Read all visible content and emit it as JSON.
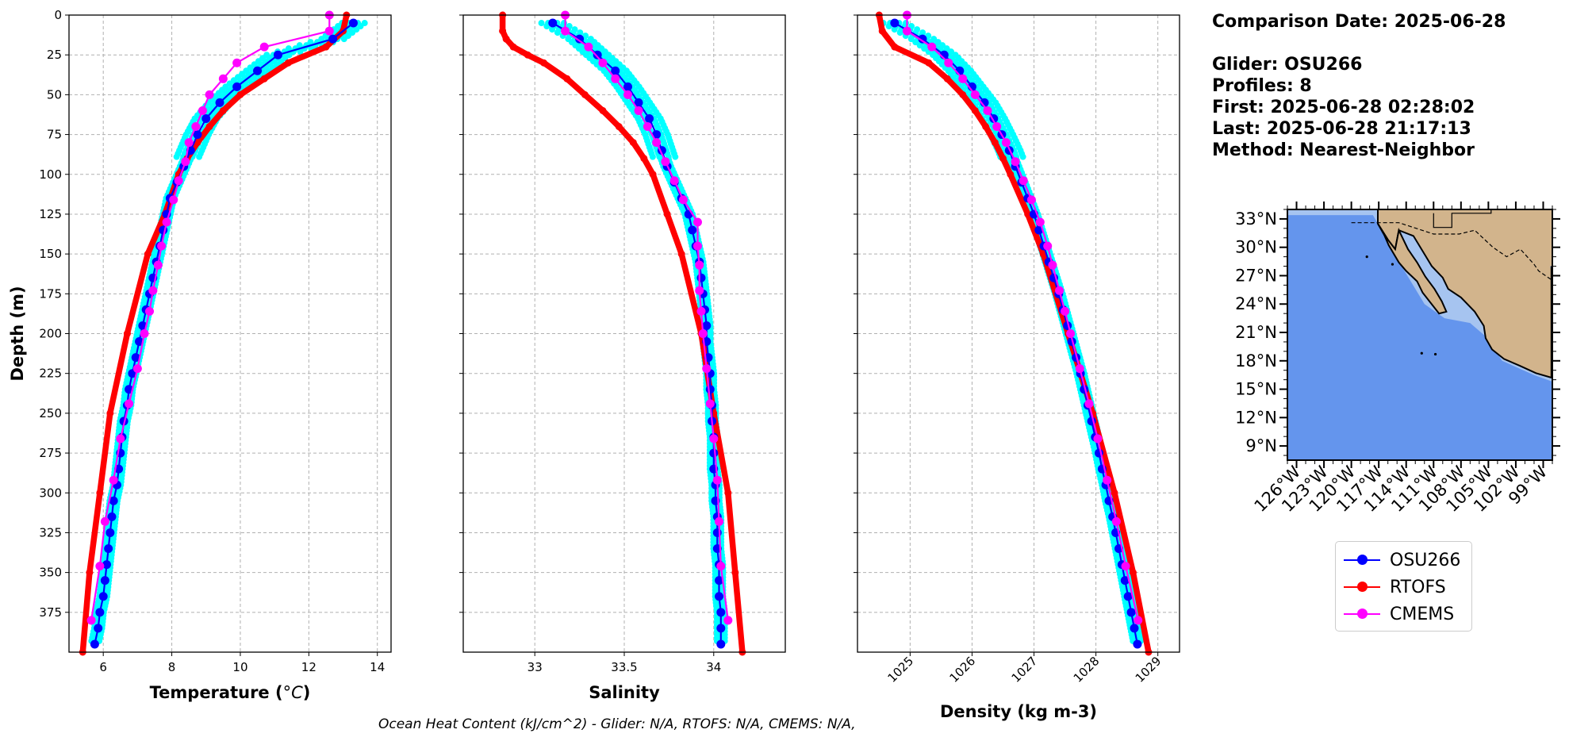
{
  "info": {
    "comparison_date": "Comparison Date: 2025-06-28",
    "glider": "Glider: OSU266",
    "profiles": "Profiles: 8",
    "first": "First: 2025-06-28 02:28:02",
    "last": "Last: 2025-06-28 21:17:13",
    "method": "Method: Nearest-Neighbor"
  },
  "footnote": "Ocean Heat Content (kJ/cm^2) - Glider: N/A,  RTOFS: N/A,  CMEMS: N/A,",
  "legend": [
    {
      "label": "OSU266",
      "color": "#0000ff"
    },
    {
      "label": "RTOFS",
      "color": "#ff0000"
    },
    {
      "label": "CMEMS",
      "color": "#ff00ff"
    }
  ],
  "colors": {
    "glider_raw": "#00ffff",
    "glider": "#0000ff",
    "rtofs": "#ff0000",
    "cmems": "#ff00ff",
    "ocean": "#6495ed",
    "shelf": "#a6c4f0",
    "land": "#d2b48c"
  },
  "map": {
    "lat_ticks": [
      "33°N",
      "30°N",
      "27°N",
      "24°N",
      "21°N",
      "18°N",
      "15°N",
      "12°N",
      "9°N"
    ],
    "lon_ticks": [
      "126°W",
      "123°W",
      "120°W",
      "117°W",
      "114°W",
      "111°W",
      "108°W",
      "105°W",
      "102°W",
      "99°W"
    ],
    "extent": {
      "lon": [
        -127,
        -98
      ],
      "lat": [
        7.5,
        34
      ]
    }
  },
  "chart_data": [
    {
      "type": "line",
      "xlabel": "Temperature (°C)",
      "ylabel": "Depth (m)",
      "xlim": [
        5,
        14.4
      ],
      "ylim": [
        400,
        0
      ],
      "xticks": [
        6,
        8,
        10,
        12,
        14
      ],
      "yticks": [
        0,
        25,
        50,
        75,
        100,
        125,
        150,
        175,
        200,
        225,
        250,
        275,
        300,
        325,
        350,
        375
      ],
      "grid": true,
      "series": [
        {
          "name": "OSU266",
          "depth": [
            5,
            15,
            25,
            35,
            45,
            55,
            65,
            75,
            85,
            95,
            105,
            115,
            125,
            135,
            145,
            155,
            165,
            175,
            185,
            195,
            205,
            215,
            225,
            235,
            245,
            255,
            265,
            275,
            285,
            295,
            305,
            315,
            325,
            335,
            345,
            355,
            365,
            375,
            385,
            395
          ],
          "values": [
            13.3,
            12.7,
            11.1,
            10.5,
            9.9,
            9.4,
            9.0,
            8.75,
            8.55,
            8.35,
            8.15,
            7.95,
            7.85,
            7.75,
            7.65,
            7.55,
            7.45,
            7.35,
            7.25,
            7.15,
            7.05,
            6.95,
            6.85,
            6.75,
            6.7,
            6.6,
            6.55,
            6.5,
            6.45,
            6.4,
            6.3,
            6.25,
            6.2,
            6.15,
            6.1,
            6.05,
            6.0,
            5.9,
            5.85,
            5.75
          ]
        },
        {
          "name": "RTOFS",
          "depth": [
            0,
            10,
            20,
            30,
            40,
            50,
            60,
            70,
            80,
            90,
            100,
            125,
            150,
            200,
            250,
            300,
            350,
            400
          ],
          "values": [
            13.1,
            13.0,
            12.5,
            11.4,
            10.7,
            10.0,
            9.5,
            9.1,
            8.75,
            8.45,
            8.2,
            7.8,
            7.3,
            6.7,
            6.2,
            5.9,
            5.6,
            5.4
          ]
        },
        {
          "name": "CMEMS",
          "depth": [
            0,
            10,
            20,
            30,
            40,
            50,
            60,
            70,
            80,
            92,
            104,
            116,
            130,
            145,
            157,
            173,
            186,
            200,
            222,
            244,
            266,
            292,
            318,
            346,
            380
          ],
          "values": [
            12.6,
            12.6,
            10.7,
            9.9,
            9.5,
            9.1,
            8.9,
            8.7,
            8.5,
            8.4,
            8.2,
            8.05,
            7.85,
            7.7,
            7.6,
            7.45,
            7.35,
            7.2,
            7.0,
            6.75,
            6.5,
            6.3,
            6.05,
            5.9,
            5.65
          ]
        }
      ]
    },
    {
      "type": "line",
      "xlabel": "Salinity",
      "ylim": [
        400,
        0
      ],
      "xlim": [
        32.6,
        34.4
      ],
      "xticks": [
        33.0,
        33.5,
        34.0
      ],
      "grid": true,
      "series": [
        {
          "name": "OSU266",
          "depth": [
            5,
            15,
            25,
            35,
            45,
            55,
            65,
            75,
            85,
            95,
            105,
            115,
            125,
            135,
            145,
            155,
            165,
            175,
            185,
            195,
            205,
            215,
            225,
            235,
            245,
            255,
            265,
            275,
            285,
            295,
            305,
            315,
            325,
            335,
            345,
            355,
            365,
            375,
            385,
            395
          ],
          "values": [
            33.1,
            33.25,
            33.35,
            33.45,
            33.52,
            33.58,
            33.64,
            33.68,
            33.71,
            33.74,
            33.78,
            33.82,
            33.86,
            33.88,
            33.9,
            33.92,
            33.93,
            33.94,
            33.95,
            33.96,
            33.96,
            33.97,
            33.98,
            33.98,
            33.99,
            33.99,
            34.0,
            34.0,
            34.0,
            34.01,
            34.01,
            34.02,
            34.02,
            34.02,
            34.03,
            34.03,
            34.03,
            34.04,
            34.04,
            34.04
          ]
        },
        {
          "name": "RTOFS",
          "depth": [
            0,
            10,
            15,
            20,
            25,
            30,
            40,
            50,
            60,
            70,
            80,
            90,
            100,
            125,
            150,
            200,
            250,
            300,
            350,
            400
          ],
          "values": [
            32.82,
            32.82,
            32.84,
            32.88,
            32.96,
            33.05,
            33.18,
            33.28,
            33.38,
            33.47,
            33.55,
            33.61,
            33.66,
            33.74,
            33.82,
            33.93,
            34.0,
            34.08,
            34.12,
            34.16
          ]
        },
        {
          "name": "CMEMS",
          "depth": [
            0,
            10,
            20,
            30,
            40,
            50,
            60,
            70,
            80,
            92,
            104,
            116,
            130,
            145,
            157,
            173,
            186,
            200,
            222,
            244,
            266,
            292,
            318,
            346,
            380
          ],
          "values": [
            33.17,
            33.17,
            33.3,
            33.38,
            33.45,
            33.52,
            33.58,
            33.63,
            33.68,
            33.73,
            33.78,
            33.83,
            33.91,
            33.91,
            33.92,
            33.92,
            33.93,
            33.94,
            33.96,
            33.98,
            34.0,
            34.02,
            34.03,
            34.04,
            34.08
          ]
        }
      ]
    },
    {
      "type": "line",
      "xlabel": "Density (kg m-3)",
      "ylim": [
        400,
        0
      ],
      "xlim": [
        1024.15,
        1029.35
      ],
      "xticks": [
        1025,
        1026,
        1027,
        1028,
        1029
      ],
      "grid": true,
      "series": [
        {
          "name": "OSU266",
          "depth": [
            5,
            15,
            25,
            35,
            45,
            55,
            65,
            75,
            85,
            95,
            105,
            115,
            125,
            135,
            145,
            155,
            165,
            175,
            185,
            195,
            205,
            215,
            225,
            235,
            245,
            255,
            265,
            275,
            285,
            295,
            305,
            315,
            325,
            335,
            345,
            355,
            365,
            375,
            385,
            395
          ],
          "values": [
            1024.75,
            1025.2,
            1025.55,
            1025.8,
            1026.0,
            1026.2,
            1026.35,
            1026.48,
            1026.6,
            1026.7,
            1026.8,
            1026.9,
            1027.0,
            1027.08,
            1027.16,
            1027.24,
            1027.32,
            1027.4,
            1027.47,
            1027.54,
            1027.61,
            1027.68,
            1027.75,
            1027.81,
            1027.87,
            1027.93,
            1027.99,
            1028.05,
            1028.1,
            1028.16,
            1028.21,
            1028.27,
            1028.32,
            1028.37,
            1028.42,
            1028.47,
            1028.52,
            1028.57,
            1028.62,
            1028.67
          ]
        },
        {
          "name": "RTOFS",
          "depth": [
            0,
            10,
            20,
            30,
            40,
            50,
            60,
            70,
            80,
            90,
            100,
            125,
            150,
            200,
            250,
            300,
            350,
            400
          ],
          "values": [
            1024.5,
            1024.55,
            1024.75,
            1025.3,
            1025.6,
            1025.85,
            1026.05,
            1026.22,
            1026.37,
            1026.5,
            1026.62,
            1026.9,
            1027.15,
            1027.55,
            1027.95,
            1028.3,
            1028.6,
            1028.85
          ]
        },
        {
          "name": "CMEMS",
          "depth": [
            0,
            10,
            20,
            30,
            40,
            50,
            60,
            70,
            80,
            92,
            104,
            116,
            130,
            145,
            157,
            173,
            186,
            200,
            222,
            244,
            266,
            292,
            318,
            346,
            380
          ],
          "values": [
            1024.95,
            1024.95,
            1025.35,
            1025.62,
            1025.85,
            1026.05,
            1026.25,
            1026.4,
            1026.55,
            1026.7,
            1026.83,
            1026.96,
            1027.1,
            1027.22,
            1027.3,
            1027.41,
            1027.5,
            1027.59,
            1027.74,
            1027.89,
            1028.03,
            1028.18,
            1028.33,
            1028.48,
            1028.68
          ]
        }
      ]
    }
  ]
}
